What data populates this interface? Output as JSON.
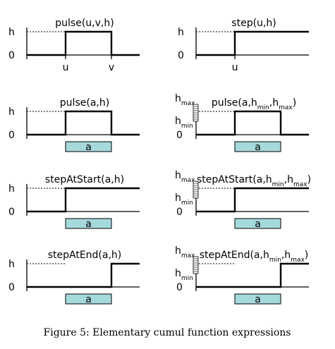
{
  "panels": [
    {
      "title": "pulse(u,v,h)",
      "title_parts": [
        {
          "t": "pulse(u,v,h)"
        }
      ],
      "kind": "pulse",
      "y_labels": {
        "h": "h",
        "zero": "0"
      },
      "x_markers": [
        "u",
        "v"
      ]
    },
    {
      "title": "step(u,h)",
      "title_parts": [
        {
          "t": "step(u,h)"
        }
      ],
      "kind": "step",
      "y_labels": {
        "h": "h",
        "zero": "0"
      },
      "x_markers": [
        "u"
      ]
    },
    {
      "title": "pulse(a,h)",
      "title_parts": [
        {
          "t": "pulse(a,h)"
        }
      ],
      "kind": "pulse",
      "y_labels": {
        "h": "h",
        "zero": "0"
      },
      "bar_label": "a"
    },
    {
      "title": "pulse(a,hmin,hmax)",
      "title_parts": [
        {
          "t": "pulse(a,h"
        },
        {
          "t": "min",
          "sub": true
        },
        {
          "t": ",h"
        },
        {
          "t": "max",
          "sub": true
        },
        {
          "t": ")"
        }
      ],
      "kind": "pulse",
      "range_labels": {
        "max": "max",
        "min": "min",
        "h": "h",
        "zero": "0"
      },
      "bar_label": "a"
    },
    {
      "title": "stepAtStart(a,h)",
      "title_parts": [
        {
          "t": "stepAtStart(a,h)"
        }
      ],
      "kind": "stepStart",
      "y_labels": {
        "h": "h",
        "zero": "0"
      },
      "bar_label": "a"
    },
    {
      "title": "stepAtStart(a,hmin,hmax)",
      "title_parts": [
        {
          "t": "stepAtStart(a,h"
        },
        {
          "t": "min",
          "sub": true
        },
        {
          "t": ",h"
        },
        {
          "t": "max",
          "sub": true
        },
        {
          "t": ")"
        }
      ],
      "kind": "stepStart",
      "range_labels": {
        "max": "max",
        "min": "min",
        "h": "h",
        "zero": "0"
      },
      "bar_label": "a"
    },
    {
      "title": "stepAtEnd(a,h)",
      "title_parts": [
        {
          "t": "stepAtEnd(a,h)"
        }
      ],
      "kind": "stepEnd",
      "y_labels": {
        "h": "h",
        "zero": "0"
      },
      "bar_label": "a"
    },
    {
      "title": "stepAtEnd(a,hmin,hmax)",
      "title_parts": [
        {
          "t": "stepAtEnd(a,h"
        },
        {
          "t": "min",
          "sub": true
        },
        {
          "t": ",h"
        },
        {
          "t": "max",
          "sub": true
        },
        {
          "t": ")"
        }
      ],
      "kind": "stepEnd",
      "range_labels": {
        "max": "max",
        "min": "min",
        "h": "h",
        "zero": "0"
      },
      "bar_label": "a"
    }
  ],
  "caption": "Figure 5: Elementary cumul function expressions",
  "colors": {
    "bar_fill": "#a6d9dc",
    "line": "#000000"
  }
}
